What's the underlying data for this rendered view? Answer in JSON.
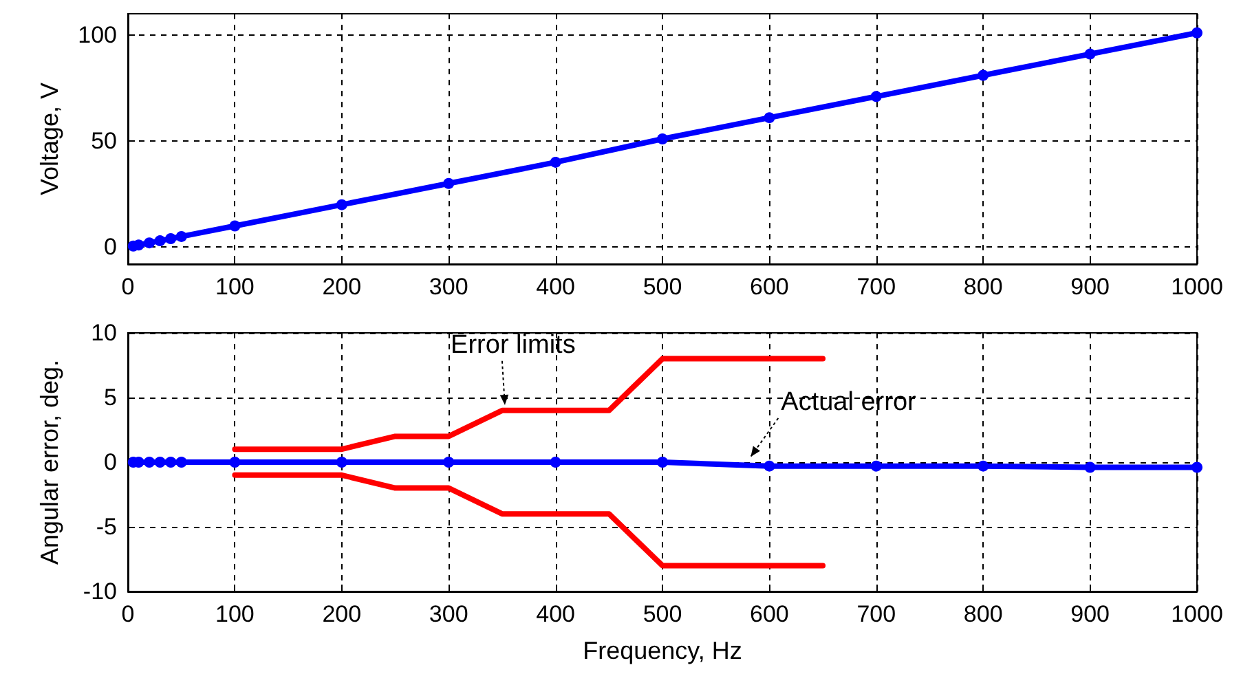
{
  "chart_data": [
    {
      "type": "line",
      "ylabel": "Voltage, V",
      "xlim": [
        0,
        1000
      ],
      "xticks": [
        0,
        100,
        200,
        300,
        400,
        500,
        600,
        700,
        800,
        900,
        1000
      ],
      "ylim": [
        -8,
        110
      ],
      "yticks": [
        0,
        50,
        100
      ],
      "grid": true,
      "marker": "circle",
      "line_style": "solid",
      "series": [
        {
          "color": "#0000ff",
          "x": [
            5,
            10,
            20,
            30,
            40,
            50,
            100,
            200,
            300,
            400,
            500,
            600,
            700,
            800,
            900,
            1000
          ],
          "values": [
            0.5,
            1,
            2,
            3,
            4,
            5,
            10,
            20,
            30,
            40,
            51,
            61,
            71,
            81,
            91,
            101
          ]
        }
      ]
    },
    {
      "type": "line",
      "xlabel": "Frequency, Hz",
      "ylabel": "Angular error, deg.",
      "xlim": [
        0,
        1000
      ],
      "xticks": [
        0,
        100,
        200,
        300,
        400,
        500,
        600,
        700,
        800,
        900,
        1000
      ],
      "ylim": [
        -10,
        10
      ],
      "yticks": [
        -10,
        -5,
        0,
        5,
        10
      ],
      "grid": true,
      "line_style": "solid",
      "annotations": [
        {
          "text": "Error limits",
          "x": 350,
          "y": 4
        },
        {
          "text": "Actual error",
          "x": 580,
          "y": 0
        }
      ],
      "series": [
        {
          "color": "#ff0000",
          "marker": "none",
          "x": [
            100,
            200,
            250,
            300,
            350,
            450,
            500,
            650
          ],
          "values": [
            1,
            1,
            2,
            2,
            4,
            4,
            8,
            8
          ]
        },
        {
          "color": "#ff0000",
          "marker": "none",
          "x": [
            100,
            200,
            250,
            300,
            350,
            450,
            500,
            650
          ],
          "values": [
            -1,
            -1,
            -2,
            -2,
            -4,
            -4,
            -8,
            -8
          ]
        },
        {
          "color": "#0000ff",
          "marker": "circle",
          "x": [
            5,
            10,
            20,
            30,
            40,
            50,
            100,
            200,
            300,
            400,
            500,
            600,
            700,
            800,
            900,
            1000
          ],
          "values": [
            0,
            0,
            0,
            0,
            0,
            0,
            0,
            0,
            0,
            0,
            0,
            -0.3,
            -0.3,
            -0.3,
            -0.4,
            -0.4
          ]
        }
      ]
    }
  ]
}
